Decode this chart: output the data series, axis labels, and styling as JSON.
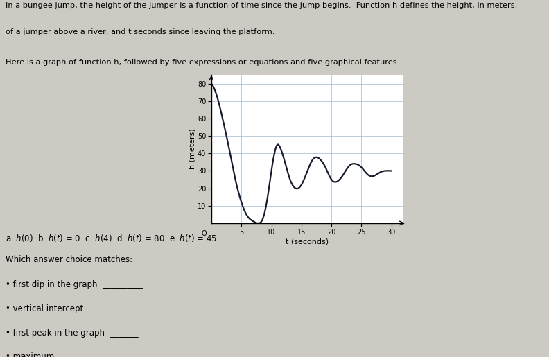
{
  "title_line1": "In a bungee jump, the height of the jumper is a function of time since the jump begins.  Function h defines the height, in meters,",
  "title_line2": "of a jumper above a river, and t seconds since leaving the platform.",
  "subtitle": "Here is a graph of function h, followed by five expressions or equations and five graphical features.",
  "xlabel": "t (seconds)",
  "ylabel": "h (meters)",
  "xlim": [
    0,
    32
  ],
  "ylim": [
    0,
    85
  ],
  "xticks": [
    5,
    10,
    15,
    20,
    25,
    30
  ],
  "yticks": [
    10,
    20,
    30,
    40,
    50,
    60,
    70,
    80
  ],
  "which_matches": "Which answer choice matches:",
  "bullet1": "first dip in the graph",
  "bullet2": "vertical intercept",
  "bullet3": "first peak in the graph",
  "bullet4": "maximum",
  "bg_color": "#cdc9c3",
  "plot_bg": "#ffffff",
  "curve_color": "#1a1a2e",
  "grid_color": "#a0b8d0",
  "text_color": "#000000",
  "curve_lw": 1.6,
  "curve_points_t": [
    0,
    1,
    2,
    3,
    4,
    5,
    6,
    7,
    8,
    8.5,
    9,
    9.5,
    10,
    10.5,
    11,
    11.5,
    12,
    13,
    14,
    15,
    16,
    17,
    18,
    19,
    20,
    21,
    22,
    23,
    24,
    25,
    26,
    27,
    28,
    29,
    30
  ],
  "curve_points_h": [
    80,
    72,
    58,
    42,
    25,
    12,
    4,
    1,
    0,
    2,
    8,
    18,
    30,
    40,
    45,
    43,
    38,
    26,
    20,
    22,
    30,
    37,
    37,
    32,
    25,
    24,
    28,
    33,
    34,
    32,
    28,
    27,
    29,
    30,
    30
  ]
}
